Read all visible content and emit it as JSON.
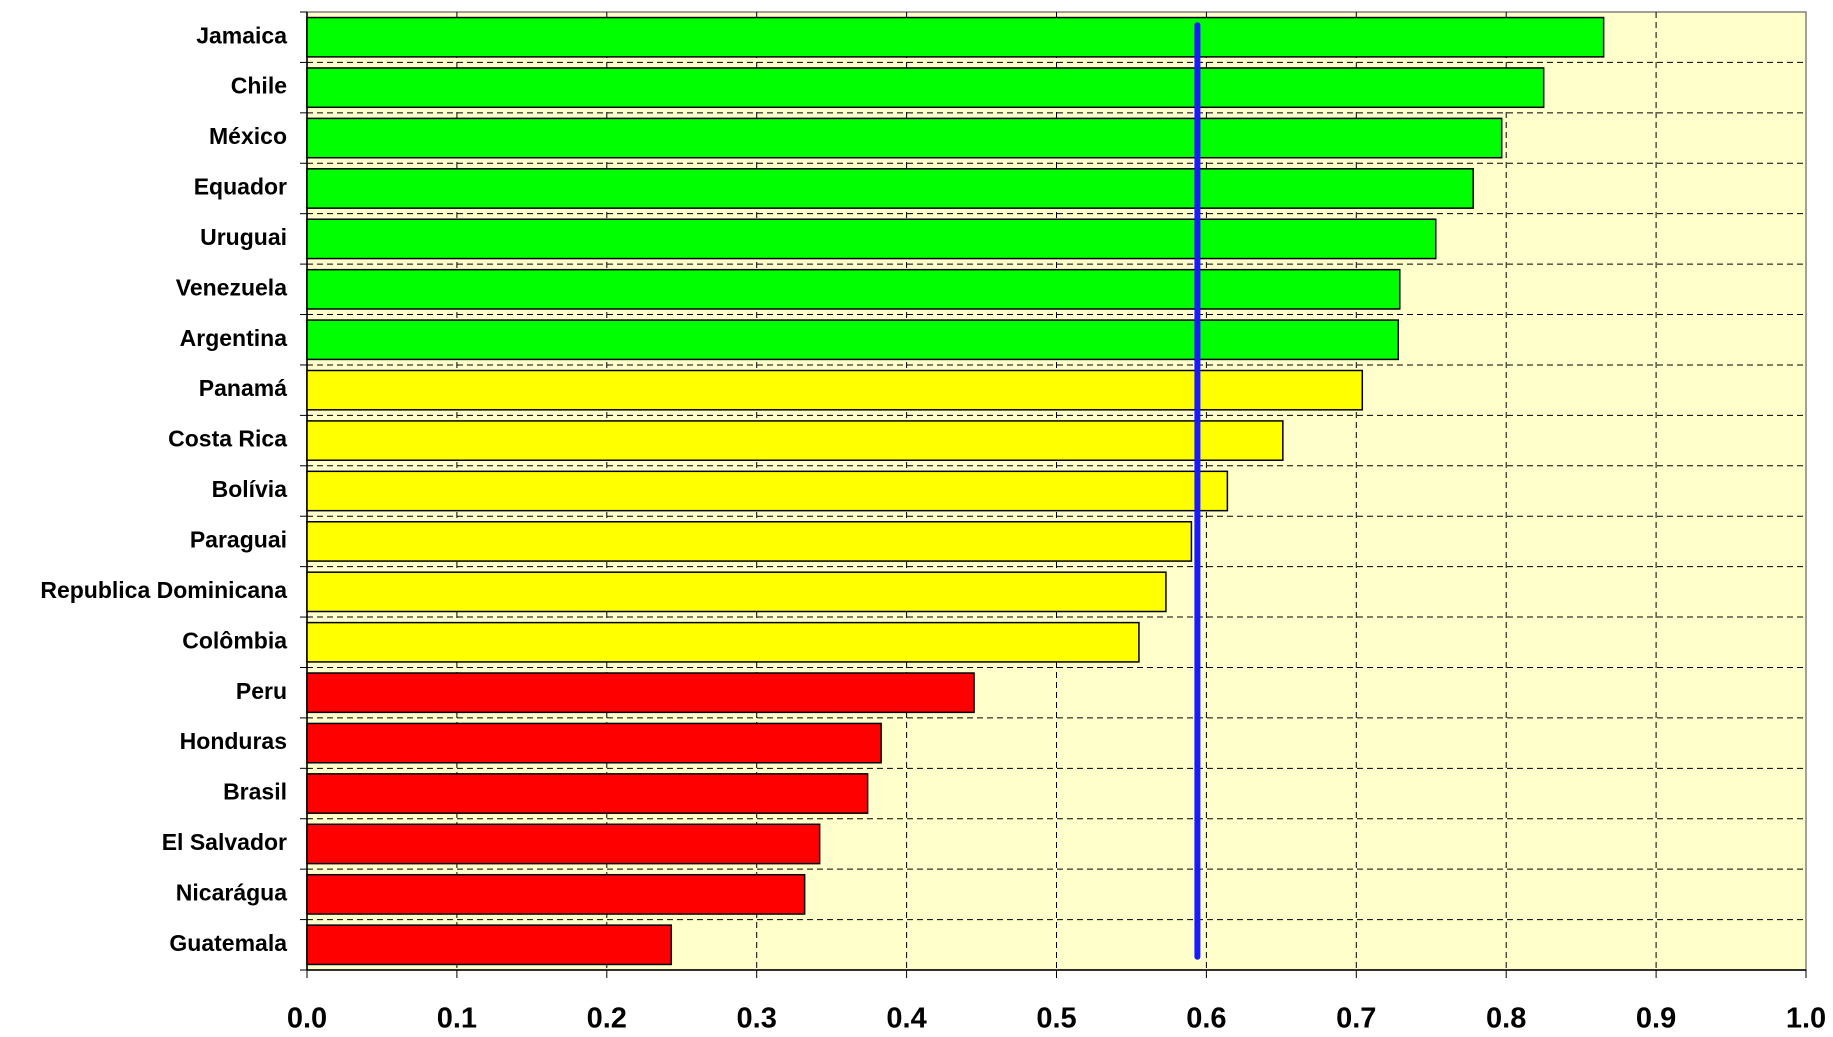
{
  "chart_data": {
    "type": "bar",
    "orientation": "horizontal",
    "categories": [
      "Jamaica",
      "Chile",
      "México",
      "Equador",
      "Uruguai",
      "Venezuela",
      "Argentina",
      "Panamá",
      "Costa Rica",
      "Bolívia",
      "Paraguai",
      "Republica Dominicana",
      "Colômbia",
      "Peru",
      "Honduras",
      "Brasil",
      "El Salvador",
      "Nicarágua",
      "Guatemala"
    ],
    "values": [
      0.865,
      0.825,
      0.797,
      0.778,
      0.753,
      0.729,
      0.728,
      0.704,
      0.651,
      0.614,
      0.59,
      0.573,
      0.555,
      0.445,
      0.383,
      0.374,
      0.342,
      0.332,
      0.243
    ],
    "colors": [
      "#00ff00",
      "#00ff00",
      "#00ff00",
      "#00ff00",
      "#00ff00",
      "#00ff00",
      "#00ff00",
      "#ffff00",
      "#ffff00",
      "#ffff00",
      "#ffff00",
      "#ffff00",
      "#ffff00",
      "#ff0000",
      "#ff0000",
      "#ff0000",
      "#ff0000",
      "#ff0000",
      "#ff0000"
    ],
    "xlim": [
      0,
      1
    ],
    "xticks": [
      {
        "value": 0,
        "label": "0.0"
      },
      0.1,
      0.2,
      0.3,
      0.4,
      0.5,
      0.6,
      0.7,
      0.8,
      0.9,
      {
        "value": 1,
        "label": "1.0"
      }
    ],
    "grid": true,
    "reference_line": {
      "value": 0.594,
      "color": "#1a1aff"
    },
    "plot_background": "#ffffcc"
  }
}
